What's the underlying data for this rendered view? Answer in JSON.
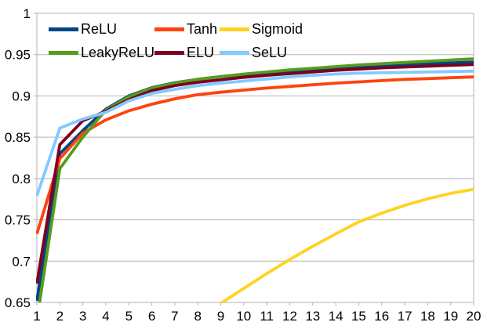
{
  "chart_data": {
    "type": "line",
    "title": "",
    "xlabel": "",
    "ylabel": "",
    "xlim": [
      1,
      20
    ],
    "ylim": [
      0.65,
      1.0
    ],
    "grid": "horizontal",
    "legend_position": "top-left-inside-two-rows",
    "background_color": "#ffffff",
    "grid_color": "#b3b3b3",
    "axis_color": "#b3b3b3",
    "label_color": "#000000",
    "x": [
      1,
      2,
      3,
      4,
      5,
      6,
      7,
      8,
      9,
      10,
      11,
      12,
      13,
      14,
      15,
      16,
      17,
      18,
      19,
      20
    ],
    "x_tick_labels": [
      "1",
      "2",
      "3",
      "4",
      "5",
      "6",
      "7",
      "8",
      "9",
      "10",
      "11",
      "12",
      "13",
      "14",
      "15",
      "16",
      "17",
      "18",
      "19",
      "20"
    ],
    "y_tick_values": [
      1,
      0.95,
      0.9,
      0.85,
      0.8,
      0.75,
      0.7,
      0.65
    ],
    "y_tick_labels": [
      "1",
      "0.95",
      "0.9",
      "0.85",
      "0.8",
      "0.75",
      "0.7",
      "0.65"
    ],
    "series": [
      {
        "name": "ReLU",
        "color": "#004586",
        "values": [
          0.652,
          0.83,
          0.858,
          0.884,
          0.9,
          0.91,
          0.916,
          0.92,
          0.9235,
          0.9255,
          0.928,
          0.93,
          0.932,
          0.9335,
          0.935,
          0.9365,
          0.9375,
          0.939,
          0.94,
          0.941
        ]
      },
      {
        "name": "Tanh",
        "color": "#ff420e",
        "values": [
          0.733,
          0.824,
          0.855,
          0.871,
          0.882,
          0.89,
          0.8965,
          0.9015,
          0.9045,
          0.907,
          0.9095,
          0.9115,
          0.9135,
          0.9155,
          0.917,
          0.9185,
          0.92,
          0.921,
          0.922,
          0.923
        ]
      },
      {
        "name": "Sigmoid",
        "color": "#ffd320",
        "values": [
          null,
          null,
          null,
          null,
          null,
          null,
          null,
          0.631,
          0.649,
          0.667,
          0.685,
          0.702,
          0.718,
          0.733,
          0.7475,
          0.758,
          0.7675,
          0.7755,
          0.782,
          0.787
        ]
      },
      {
        "name": "LeakyReLU",
        "color": "#579d1c",
        "values": [
          0.628,
          0.812,
          0.85,
          0.883,
          0.899,
          0.9095,
          0.9155,
          0.92,
          0.9235,
          0.9265,
          0.929,
          0.9315,
          0.9335,
          0.9355,
          0.9375,
          0.939,
          0.9405,
          0.942,
          0.9435,
          0.945
        ]
      },
      {
        "name": "ELU",
        "color": "#7e0021",
        "values": [
          0.673,
          0.841,
          0.87,
          0.8815,
          0.8955,
          0.9065,
          0.9125,
          0.9165,
          0.9195,
          0.9225,
          0.925,
          0.927,
          0.929,
          0.931,
          0.9325,
          0.934,
          0.935,
          0.936,
          0.937,
          0.938
        ]
      },
      {
        "name": "SeLU",
        "color": "#83caff",
        "values": [
          0.779,
          0.861,
          0.872,
          0.88,
          0.894,
          0.903,
          0.908,
          0.9125,
          0.9155,
          0.918,
          0.9205,
          0.923,
          0.925,
          0.9265,
          0.9275,
          0.928,
          0.9285,
          0.929,
          0.9295,
          0.93
        ]
      }
    ]
  }
}
